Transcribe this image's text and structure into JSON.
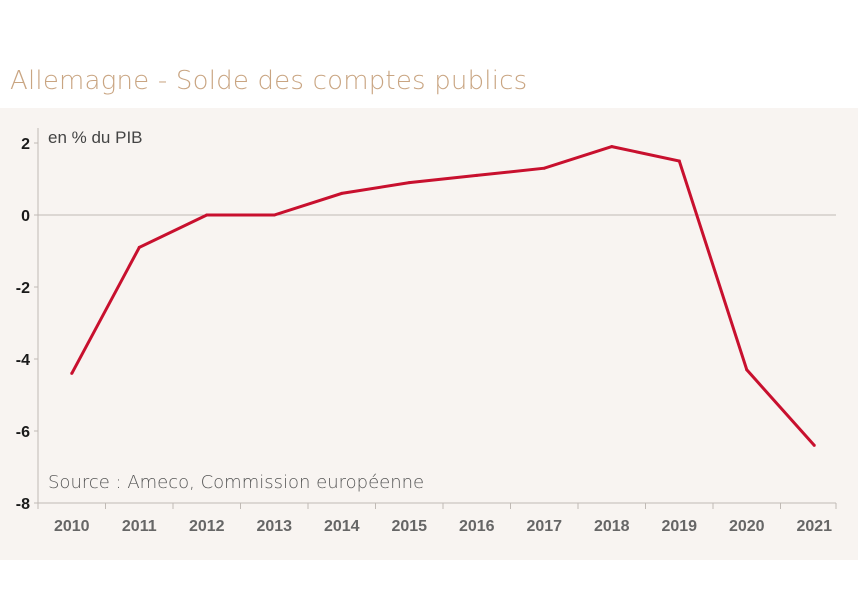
{
  "chart_data": {
    "type": "line",
    "title": "Allemagne - Solde des comptes publics",
    "unit_label": "en % du PIB",
    "source": "Source :  Ameco, Commission européenne",
    "categories": [
      "2010",
      "2011",
      "2012",
      "2013",
      "2014",
      "2015",
      "2016",
      "2017",
      "2018",
      "2019",
      "2020",
      "2021"
    ],
    "series": [
      {
        "values": [
          -4.4,
          -0.9,
          0.0,
          0.0,
          0.6,
          0.9,
          1.1,
          1.3,
          1.9,
          1.5,
          -4.3,
          -6.4
        ]
      }
    ],
    "ylim": [
      -8,
      2
    ],
    "yticks": [
      2,
      0,
      -2,
      -4,
      -6,
      -8
    ],
    "ytick_labels": [
      "2",
      "0",
      "-2",
      "-4",
      "-6",
      "-8"
    ],
    "grid": false,
    "zero_line": true,
    "colors": {
      "line": "#c8102e",
      "title": "#c9a582",
      "panel": "#f8f4f1",
      "axis": "#c0bab5",
      "tick_text": "#666666",
      "ytick_text": "#1a1a1a",
      "note_text": "#555555"
    }
  }
}
